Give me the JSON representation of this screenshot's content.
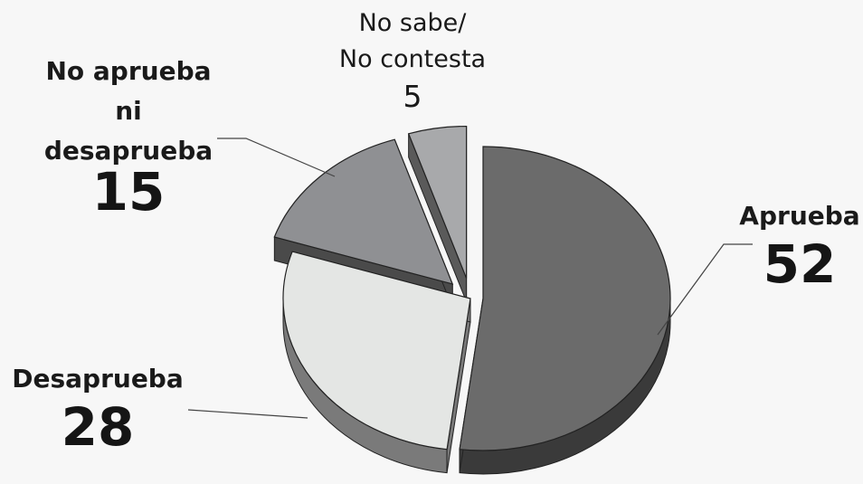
{
  "chart_data": {
    "type": "pie",
    "title": "",
    "slices": [
      {
        "label_lines": [
          "Aprueba"
        ],
        "value": 52,
        "color": "#6b6b6b",
        "side_color": "#3a3a3a",
        "exploded": false,
        "bold": true
      },
      {
        "label_lines": [
          "Desaprueba"
        ],
        "value": 28,
        "color": "#e4e6e4",
        "side_color": "#7a7a7a",
        "exploded": false,
        "bold": true
      },
      {
        "label_lines": [
          "No aprueba",
          "ni",
          "desaprueba"
        ],
        "value": 15,
        "color": "#8f9093",
        "side_color": "#4a4a4a",
        "exploded": true,
        "bold": true
      },
      {
        "label_lines": [
          "No sabe/",
          "No contesta"
        ],
        "value": 5,
        "color": "#a8a9ab",
        "side_color": "#5a5a5a",
        "exploded": true,
        "bold": false
      }
    ],
    "legend": "none"
  }
}
